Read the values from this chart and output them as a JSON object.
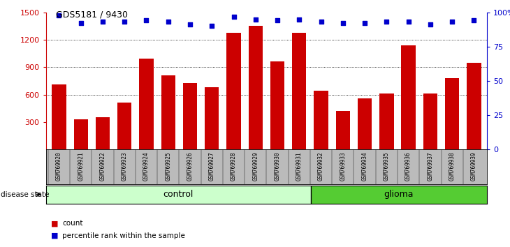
{
  "title": "GDS5181 / 9430",
  "samples": [
    "GSM769920",
    "GSM769921",
    "GSM769922",
    "GSM769923",
    "GSM769924",
    "GSM769925",
    "GSM769926",
    "GSM769927",
    "GSM769928",
    "GSM769929",
    "GSM769930",
    "GSM769931",
    "GSM769932",
    "GSM769933",
    "GSM769934",
    "GSM769935",
    "GSM769936",
    "GSM769937",
    "GSM769938",
    "GSM769939"
  ],
  "counts": [
    710,
    330,
    355,
    510,
    990,
    810,
    730,
    680,
    1280,
    1350,
    960,
    1275,
    645,
    420,
    560,
    615,
    1140,
    615,
    780,
    950
  ],
  "percentiles": [
    98,
    92,
    93,
    93,
    94,
    93,
    91,
    90,
    97,
    95,
    94,
    95,
    93,
    92,
    92,
    93,
    93,
    91,
    93,
    94
  ],
  "control_count": 12,
  "glioma_count": 8,
  "bar_color": "#cc0000",
  "dot_color": "#0000cc",
  "control_color": "#ccffcc",
  "glioma_color": "#55cc33",
  "ylim_left": [
    0,
    1500
  ],
  "ylim_right": [
    0,
    100
  ],
  "yticks_left": [
    300,
    600,
    900,
    1200,
    1500
  ],
  "yticks_right": [
    0,
    25,
    50,
    75,
    100
  ],
  "ytick_labels_right": [
    "0",
    "25",
    "50",
    "75",
    "100%"
  ],
  "grid_vals": [
    600,
    900,
    1200
  ],
  "background_color": "#ffffff",
  "tick_area_color": "#bbbbbb"
}
